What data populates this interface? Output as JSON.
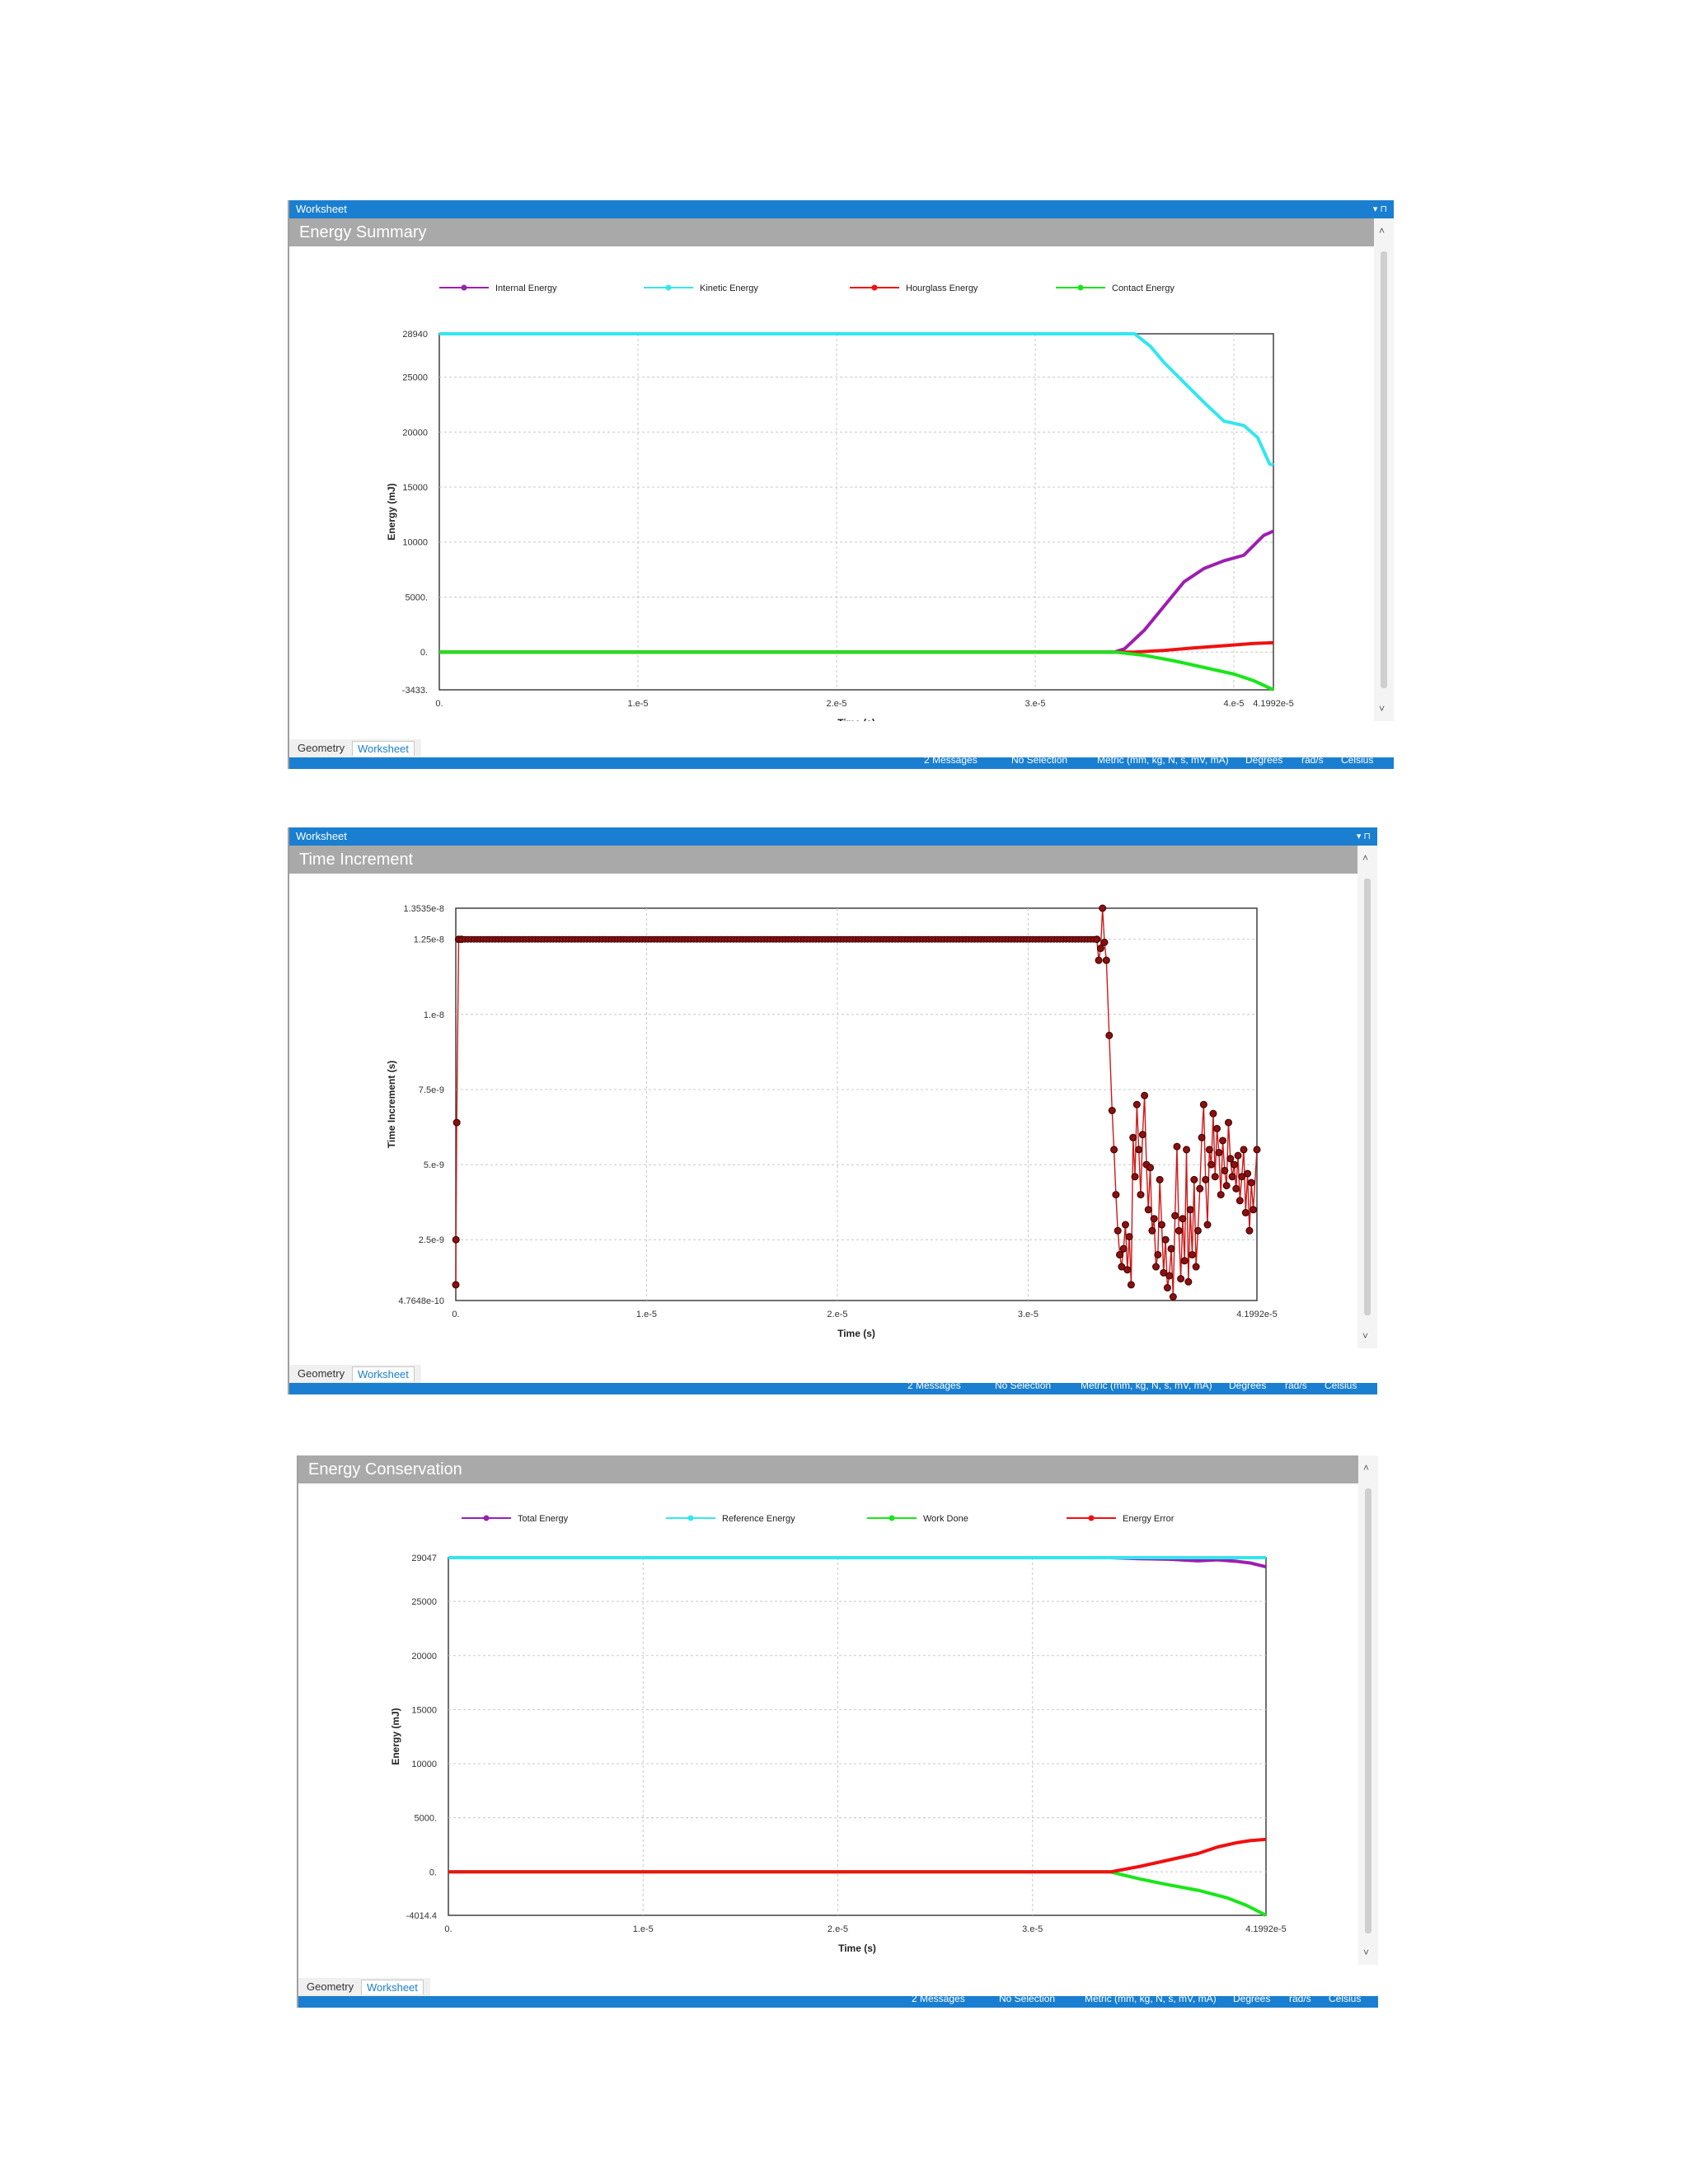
{
  "panels": [
    {
      "worksheet_label": "Worksheet",
      "title": "Energy Summary",
      "tabs": [
        "Geometry",
        "Worksheet"
      ],
      "status_items": [
        "2 Messages",
        "No Selection",
        "Metric (mm, kg, N, s, mV, mA)",
        "Degrees",
        "rad/s",
        "Celsius"
      ]
    },
    {
      "worksheet_label": "Worksheet",
      "title": "Time Increment",
      "tabs": [
        "Geometry",
        "Worksheet"
      ],
      "status_items": [
        "2 Messages",
        "No Selection",
        "Metric (mm, kg, N, s, mV, mA)",
        "Degrees",
        "rad/s",
        "Celsius"
      ]
    },
    {
      "worksheet_label": "",
      "title": "Energy Conservation",
      "tabs": [
        "Geometry",
        "Worksheet"
      ],
      "status_items": [
        "2 Messages",
        "No Selection",
        "Metric (mm, kg, N, s, mV, mA)",
        "Degrees",
        "rad/s",
        "Celsius"
      ]
    }
  ],
  "chart_data": [
    {
      "type": "line",
      "title": "Energy Summary",
      "xlabel": "Time (s)",
      "ylabel": "Energy (mJ)",
      "xlim": [
        0,
        4.1992e-05
      ],
      "ylim": [
        -3433,
        28940
      ],
      "xticks": [
        0,
        1e-05,
        2e-05,
        3e-05,
        4e-05,
        4.1992e-05
      ],
      "xtick_labels": [
        "0.",
        "1.e-5",
        "2.e-5",
        "3.e-5",
        "4.e-5",
        "4.1992e-5"
      ],
      "yticks": [
        -3433,
        0,
        5000,
        10000,
        15000,
        20000,
        25000,
        28940
      ],
      "ytick_labels": [
        "-3433.",
        "0.",
        "5000.",
        "10000",
        "15000",
        "20000",
        "25000",
        "28940"
      ],
      "grid": true,
      "legend_placement": "top",
      "series": [
        {
          "name": "Internal Energy",
          "color": "#9c1fb0",
          "x": [
            0,
            3.4e-05,
            3.45e-05,
            3.55e-05,
            3.65e-05,
            3.75e-05,
            3.85e-05,
            3.95e-05,
            4.05e-05,
            4.15e-05,
            4.1992e-05
          ],
          "y": [
            0,
            0,
            300,
            2000,
            4200,
            6400,
            7600,
            8300,
            8800,
            10600,
            11000
          ]
        },
        {
          "name": "Kinetic Energy",
          "color": "#33e6f0",
          "x": [
            0,
            3.5e-05,
            3.58e-05,
            3.65e-05,
            3.75e-05,
            3.85e-05,
            3.95e-05,
            4.05e-05,
            4.12e-05,
            4.18e-05,
            4.1992e-05
          ],
          "y": [
            28940,
            28940,
            27800,
            26300,
            24500,
            22700,
            21000,
            20600,
            19500,
            17100,
            17000
          ]
        },
        {
          "name": "Hourglass Energy",
          "color": "#f01010",
          "x": [
            0,
            3.5e-05,
            3.65e-05,
            3.8e-05,
            3.95e-05,
            4.1e-05,
            4.1992e-05
          ],
          "y": [
            0,
            0,
            150,
            380,
            580,
            780,
            850
          ]
        },
        {
          "name": "Contact Energy",
          "color": "#19e619",
          "x": [
            0,
            3.4e-05,
            3.55e-05,
            3.7e-05,
            3.85e-05,
            4e-05,
            4.1e-05,
            4.1992e-05
          ],
          "y": [
            0,
            0,
            -300,
            -800,
            -1400,
            -2000,
            -2600,
            -3433
          ]
        }
      ]
    },
    {
      "type": "line",
      "title": "Time Increment",
      "xlabel": "Time (s)",
      "ylabel": "Time Increment (s)",
      "xlim": [
        0,
        4.1992e-05
      ],
      "ylim": [
        4.7648e-10,
        1.3535e-08
      ],
      "xticks": [
        0,
        1e-05,
        2e-05,
        3e-05,
        4.1992e-05
      ],
      "xtick_labels": [
        "0.",
        "1.e-5",
        "2.e-5",
        "3.e-5",
        "4.1992e-5"
      ],
      "yticks": [
        4.7648e-10,
        2.5e-09,
        5e-09,
        7.5e-09,
        1e-08,
        1.25e-08,
        1.3535e-08
      ],
      "ytick_labels": [
        "4.7648e-10",
        "2.5e-9",
        "5.e-9",
        "7.5e-9",
        "1.e-8",
        "1.25e-8",
        "1.3535e-8"
      ],
      "grid": true,
      "series": [
        {
          "name": "",
          "color": "#d01818",
          "marker_color": "#8a1010",
          "x": [
            0,
            1e-08,
            5e-08,
            1.5e-07,
            3e-07,
            3.36e-05,
            3.37e-05,
            3.38e-05,
            3.39e-05,
            3.4e-05,
            3.41e-05,
            3.425e-05,
            3.44e-05,
            3.45e-05,
            3.46e-05,
            3.47e-05,
            3.48e-05,
            3.49e-05,
            3.5e-05,
            3.51e-05,
            3.52e-05,
            3.53e-05,
            3.54e-05,
            3.55e-05,
            3.56e-05,
            3.57e-05,
            3.58e-05,
            3.59e-05,
            3.6e-05,
            3.61e-05,
            3.62e-05,
            3.63e-05,
            3.64e-05,
            3.65e-05,
            3.66e-05,
            3.67e-05,
            3.68e-05,
            3.69e-05,
            3.7e-05,
            3.71e-05,
            3.72e-05,
            3.73e-05,
            3.74e-05,
            3.75e-05,
            3.76e-05,
            3.77e-05,
            3.78e-05,
            3.79e-05,
            3.8e-05,
            3.81e-05,
            3.82e-05,
            3.83e-05,
            3.84e-05,
            3.85e-05,
            3.86e-05,
            3.87e-05,
            3.88e-05,
            3.89e-05,
            3.9e-05,
            3.91e-05,
            3.92e-05,
            3.93e-05,
            3.94e-05,
            3.95e-05,
            3.96e-05,
            3.97e-05,
            3.98e-05,
            3.99e-05,
            4e-05,
            4.01e-05,
            4.02e-05,
            4.03e-05,
            4.04e-05,
            4.05e-05,
            4.06e-05,
            4.07e-05,
            4.08e-05,
            4.09e-05,
            4.1e-05,
            4.11e-05,
            4.12e-05,
            4.13e-05,
            4.14e-05,
            4.15e-05,
            4.16e-05,
            4.17e-05,
            4.18e-05,
            4.1992e-05
          ],
          "y": [
            1e-09,
            2.5e-09,
            6.4e-09,
            1.25e-08,
            1.25e-08,
            1.25e-08,
            1.18e-08,
            1.22e-08,
            1.3535e-08,
            1.24e-08,
            1.18e-08,
            9.3e-09,
            6.8e-09,
            5.5e-09,
            4e-09,
            2.8e-09,
            2e-09,
            1.6e-09,
            2.2e-09,
            3e-09,
            1.5e-09,
            2.6e-09,
            1e-09,
            5.9e-09,
            4.6e-09,
            7e-09,
            5.5e-09,
            4e-09,
            6e-09,
            7.3e-09,
            5e-09,
            3.5e-09,
            4.9e-09,
            2.8e-09,
            3.2e-09,
            1.6e-09,
            2e-09,
            4.5e-09,
            3e-09,
            1.4e-09,
            2.5e-09,
            9e-10,
            1.3e-09,
            2.2e-09,
            6e-10,
            3.3e-09,
            5.6e-09,
            2.8e-09,
            1.2e-09,
            3.2e-09,
            1.8e-09,
            5.5e-09,
            1.1e-09,
            3.5e-09,
            2e-09,
            4.5e-09,
            1.6e-09,
            2.8e-09,
            4.2e-09,
            5.9e-09,
            7e-09,
            4.5e-09,
            3e-09,
            5.5e-09,
            5e-09,
            6.7e-09,
            4.6e-09,
            6.2e-09,
            5.4e-09,
            4e-09,
            5.8e-09,
            4.8e-09,
            4.3e-09,
            6.4e-09,
            5.2e-09,
            4.6e-09,
            5e-09,
            4.2e-09,
            5.3e-09,
            3.8e-09,
            4.6e-09,
            5.5e-09,
            3.4e-09,
            4.7e-09,
            2.8e-09,
            4.4e-09,
            3.5e-09,
            5.5e-09
          ]
        }
      ]
    },
    {
      "type": "line",
      "title": "Energy Conservation",
      "xlabel": "Time (s)",
      "ylabel": "Energy (mJ)",
      "xlim": [
        0,
        4.1992e-05
      ],
      "ylim": [
        -4014.4,
        29047
      ],
      "xticks": [
        0,
        1e-05,
        2e-05,
        3e-05,
        4.1992e-05
      ],
      "xtick_labels": [
        "0.",
        "1.e-5",
        "2.e-5",
        "3.e-5",
        "4.1992e-5"
      ],
      "yticks": [
        -4014.4,
        0,
        5000,
        10000,
        15000,
        20000,
        25000,
        29047
      ],
      "ytick_labels": [
        "-4014.4",
        "0.",
        "5000.",
        "10000",
        "15000",
        "20000",
        "25000",
        "29047"
      ],
      "grid": true,
      "legend_placement": "top",
      "series": [
        {
          "name": "Total Energy",
          "color": "#9c1fb0",
          "x": [
            0,
            3.4e-05,
            3.55e-05,
            3.7e-05,
            3.85e-05,
            3.95e-05,
            4.05e-05,
            4.12e-05,
            4.1992e-05
          ],
          "y": [
            29047,
            29047,
            28950,
            28900,
            28750,
            28850,
            28700,
            28550,
            28200
          ]
        },
        {
          "name": "Reference Energy",
          "color": "#33e6f0",
          "x": [
            0,
            4.1992e-05
          ],
          "y": [
            29047,
            29047
          ]
        },
        {
          "name": "Work Done",
          "color": "#19e619",
          "x": [
            0,
            3.4e-05,
            3.55e-05,
            3.7e-05,
            3.85e-05,
            4e-05,
            4.1e-05,
            4.1992e-05
          ],
          "y": [
            0,
            0,
            -650,
            -1200,
            -1700,
            -2400,
            -3100,
            -4014.4
          ]
        },
        {
          "name": "Energy Error",
          "color": "#f01010",
          "x": [
            0,
            3.4e-05,
            3.55e-05,
            3.7e-05,
            3.85e-05,
            3.95e-05,
            4.05e-05,
            4.12e-05,
            4.1992e-05
          ],
          "y": [
            0,
            0,
            500,
            1100,
            1700,
            2300,
            2700,
            2900,
            3000
          ]
        }
      ]
    }
  ]
}
